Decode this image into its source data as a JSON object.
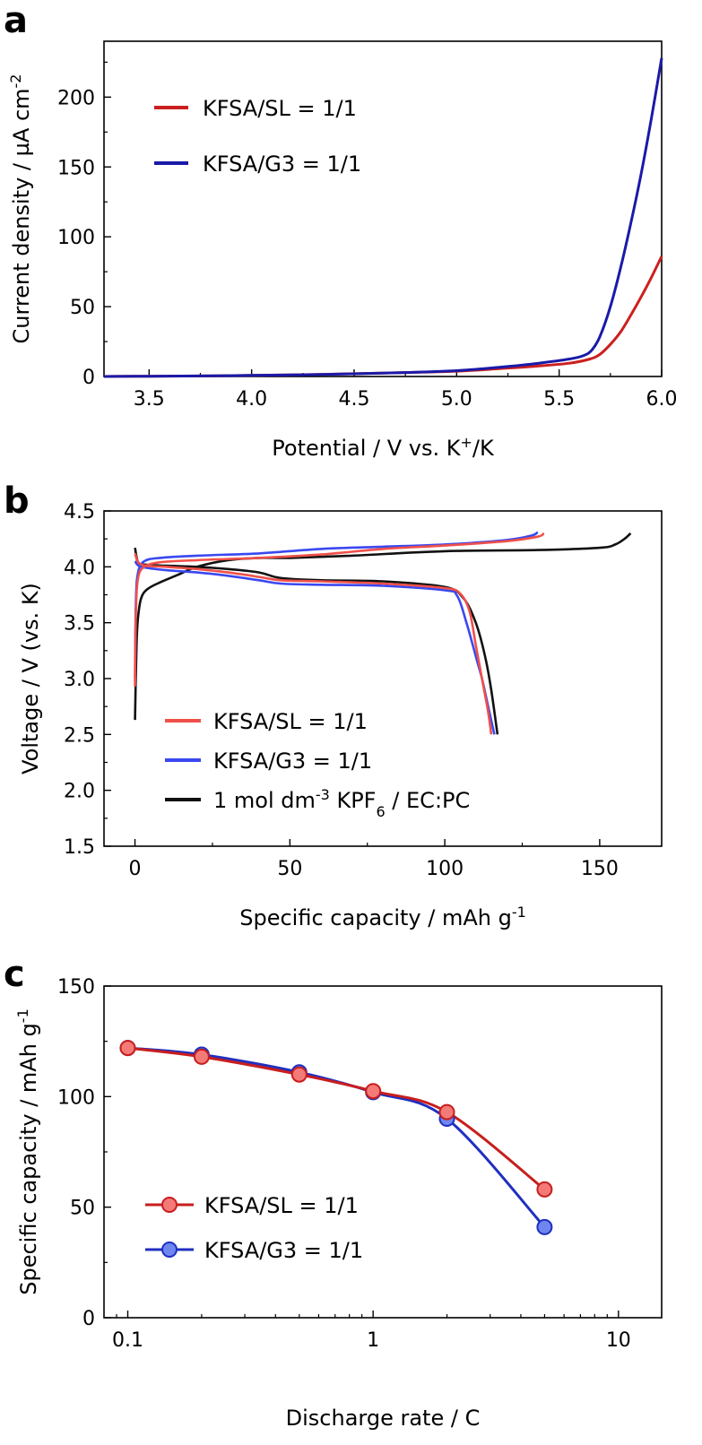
{
  "chart_data": [
    {
      "panel": "a",
      "type": "line",
      "xlabel": "Potential / V vs. K",
      "xlabel_sup": "+",
      "xlabel_tail": "/K",
      "ylabel": "Current density / µA cm",
      "ylabel_sup": "-2",
      "xlim": [
        3.28,
        6.0
      ],
      "ylim": [
        0,
        240
      ],
      "xticks": [
        "3.5",
        "4.0",
        "4.5",
        "5.0",
        "5.5",
        "6.0"
      ],
      "xtick_values": [
        3.5,
        4.0,
        4.5,
        5.0,
        5.5,
        6.0
      ],
      "yticks": [
        "0",
        "50",
        "100",
        "150",
        "200"
      ],
      "ytick_values": [
        0,
        50,
        100,
        150,
        200
      ],
      "legend_position": "top-left",
      "series": [
        {
          "name": "KFSA/SL = 1/1",
          "color": "#cc1f1f",
          "x": [
            3.28,
            3.5,
            3.75,
            4.0,
            4.25,
            4.5,
            4.75,
            5.0,
            5.2,
            5.4,
            5.55,
            5.65,
            5.7,
            5.75,
            5.8,
            5.85,
            5.9,
            5.95,
            6.0
          ],
          "y": [
            0,
            0.2,
            0.4,
            0.8,
            1.3,
            2.0,
            2.8,
            3.8,
            5.5,
            7.5,
            9.5,
            12.5,
            16,
            23,
            32,
            44,
            57,
            71,
            86
          ]
        },
        {
          "name": "KFSA/G3 = 1/1",
          "color": "#1a1aa8",
          "x": [
            3.28,
            3.5,
            3.75,
            4.0,
            4.25,
            4.5,
            4.75,
            5.0,
            5.2,
            5.4,
            5.55,
            5.62,
            5.66,
            5.7,
            5.75,
            5.8,
            5.85,
            5.9,
            5.95,
            6.0
          ],
          "y": [
            0,
            0.2,
            0.4,
            0.8,
            1.2,
            1.9,
            2.8,
            4.2,
            6.5,
            9.5,
            12.5,
            15,
            19,
            29,
            50,
            78,
            110,
            145,
            185,
            228
          ]
        }
      ]
    },
    {
      "panel": "b",
      "type": "line",
      "xlabel": "Specific capacity / mAh g",
      "xlabel_sup": "-1",
      "ylabel": "Voltage / V (vs. K)",
      "xlim": [
        -10,
        170
      ],
      "ylim": [
        1.5,
        4.5
      ],
      "xticks": [
        "0",
        "50",
        "100",
        "150"
      ],
      "xtick_values": [
        0,
        50,
        100,
        150
      ],
      "yticks": [
        "1.5",
        "2.0",
        "2.5",
        "3.0",
        "3.5",
        "4.0",
        "4.5"
      ],
      "ytick_values": [
        1.5,
        2.0,
        2.5,
        3.0,
        3.5,
        4.0,
        4.5
      ],
      "legend_position": "bottom-left",
      "series": [
        {
          "name": "KFSA/SL = 1/1",
          "color": "#f0504a",
          "charge_x": [
            0,
            0.3,
            1,
            3,
            8,
            20,
            40,
            60,
            80,
            100,
            120,
            130,
            132
          ],
          "charge_y": [
            2.93,
            3.6,
            3.9,
            4.0,
            4.04,
            4.06,
            4.08,
            4.11,
            4.16,
            4.19,
            4.23,
            4.27,
            4.3
          ],
          "discharge_x": [
            0,
            2,
            10,
            20,
            30,
            40,
            47,
            60,
            80,
            100,
            105,
            108,
            110,
            112,
            114,
            115
          ],
          "discharge_y": [
            4.12,
            4.02,
            4.0,
            3.98,
            3.95,
            3.91,
            3.88,
            3.87,
            3.85,
            3.81,
            3.76,
            3.6,
            3.3,
            3.0,
            2.7,
            2.5
          ]
        },
        {
          "name": "KFSA/G3 = 1/1",
          "color": "#3a48f0",
          "charge_x": [
            0,
            0.3,
            1,
            3,
            8,
            20,
            40,
            60,
            80,
            100,
            120,
            128,
            130
          ],
          "charge_y": [
            3.0,
            3.7,
            3.95,
            4.05,
            4.08,
            4.1,
            4.12,
            4.16,
            4.18,
            4.2,
            4.24,
            4.28,
            4.31
          ],
          "discharge_x": [
            0,
            2,
            10,
            20,
            30,
            40,
            47,
            60,
            80,
            100,
            104,
            107,
            110,
            112,
            114,
            116
          ],
          "discharge_y": [
            4.05,
            4.0,
            3.97,
            3.95,
            3.92,
            3.88,
            3.85,
            3.84,
            3.83,
            3.79,
            3.74,
            3.5,
            3.2,
            3.0,
            2.75,
            2.5
          ]
        },
        {
          "name": "1 mol dm",
          "name_sup": "-3",
          "name_mid": " KPF",
          "name_sub": "6",
          "name_tail": " / EC:PC",
          "color": "#111111",
          "charge_x": [
            0,
            0.5,
            1,
            2,
            4,
            8,
            14,
            20,
            30,
            40,
            50,
            70,
            100,
            130,
            150,
            155,
            158,
            160
          ],
          "charge_y": [
            2.63,
            3.3,
            3.55,
            3.72,
            3.8,
            3.86,
            3.93,
            4.0,
            4.06,
            4.08,
            4.08,
            4.1,
            4.14,
            4.15,
            4.17,
            4.2,
            4.25,
            4.3
          ],
          "discharge_x": [
            0,
            1,
            3,
            10,
            20,
            30,
            40,
            47,
            60,
            80,
            100,
            106,
            110,
            113,
            115,
            117
          ],
          "discharge_y": [
            4.17,
            4.04,
            4.02,
            4.01,
            4.0,
            3.98,
            3.95,
            3.9,
            3.88,
            3.87,
            3.82,
            3.72,
            3.5,
            3.2,
            2.9,
            2.5
          ]
        }
      ]
    },
    {
      "panel": "c",
      "type": "scatter",
      "xscale": "log",
      "xlabel": "Discharge rate / C",
      "ylabel": "Specific capacity / mAh g",
      "ylabel_sup": "-1",
      "xlim": [
        0.08,
        15
      ],
      "ylim": [
        0,
        150
      ],
      "xticks": [
        "0.1",
        "1",
        "10"
      ],
      "xtick_values": [
        0.1,
        1,
        10
      ],
      "yticks": [
        "0",
        "50",
        "100",
        "150"
      ],
      "ytick_values": [
        0,
        50,
        100,
        150
      ],
      "legend_position": "bottom-left",
      "series": [
        {
          "name": "KFSA/SL = 1/1",
          "color": "#c81e1e",
          "marker_fill": "#f47a78",
          "x": [
            0.1,
            0.2,
            0.5,
            1,
            2,
            5
          ],
          "y": [
            122,
            118,
            110,
            102.5,
            93,
            58
          ]
        },
        {
          "name": "KFSA/G3 = 1/1",
          "color": "#1f2fc0",
          "marker_fill": "#6f86f0",
          "x": [
            0.1,
            0.2,
            0.5,
            1,
            2,
            5
          ],
          "y": [
            122,
            119,
            111,
            102,
            90,
            41
          ]
        }
      ]
    }
  ],
  "panels": {
    "a": "a",
    "b": "b",
    "c": "c"
  }
}
